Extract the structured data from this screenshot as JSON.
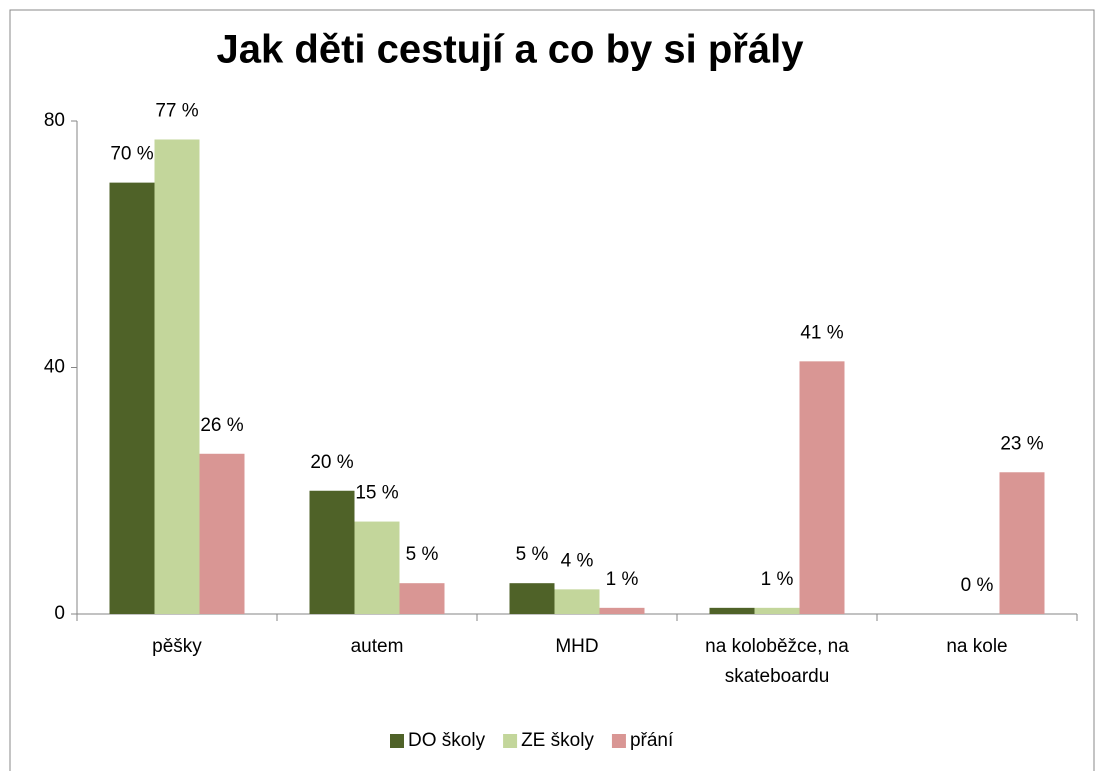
{
  "chart_data": {
    "type": "bar",
    "title": "Jak děti cestují a co by si přály",
    "categories": [
      "pěšky",
      "autem",
      "MHD",
      "na koloběžce, na skateboardu",
      "na kole"
    ],
    "series": [
      {
        "name": "DO školy",
        "color": "#4f6228",
        "values": [
          70,
          20,
          5,
          1,
          0
        ],
        "value_labels": [
          "70 %",
          "20 %",
          "5 %",
          null,
          null
        ]
      },
      {
        "name": "ZE školy",
        "color": "#c3d69b",
        "values": [
          77,
          15,
          4,
          1,
          0
        ],
        "value_labels": [
          "77 %",
          "15 %",
          "4 %",
          "1 %",
          "0 %"
        ]
      },
      {
        "name": "přání",
        "color": "#d99694",
        "values": [
          26,
          5,
          1,
          41,
          23
        ],
        "value_labels": [
          "26 %",
          "5 %",
          "1 %",
          "41 %",
          "23 %"
        ]
      }
    ],
    "ylim": [
      0,
      80
    ],
    "yticks": [
      0,
      40,
      80
    ],
    "grid": false,
    "legend": "bottom"
  }
}
